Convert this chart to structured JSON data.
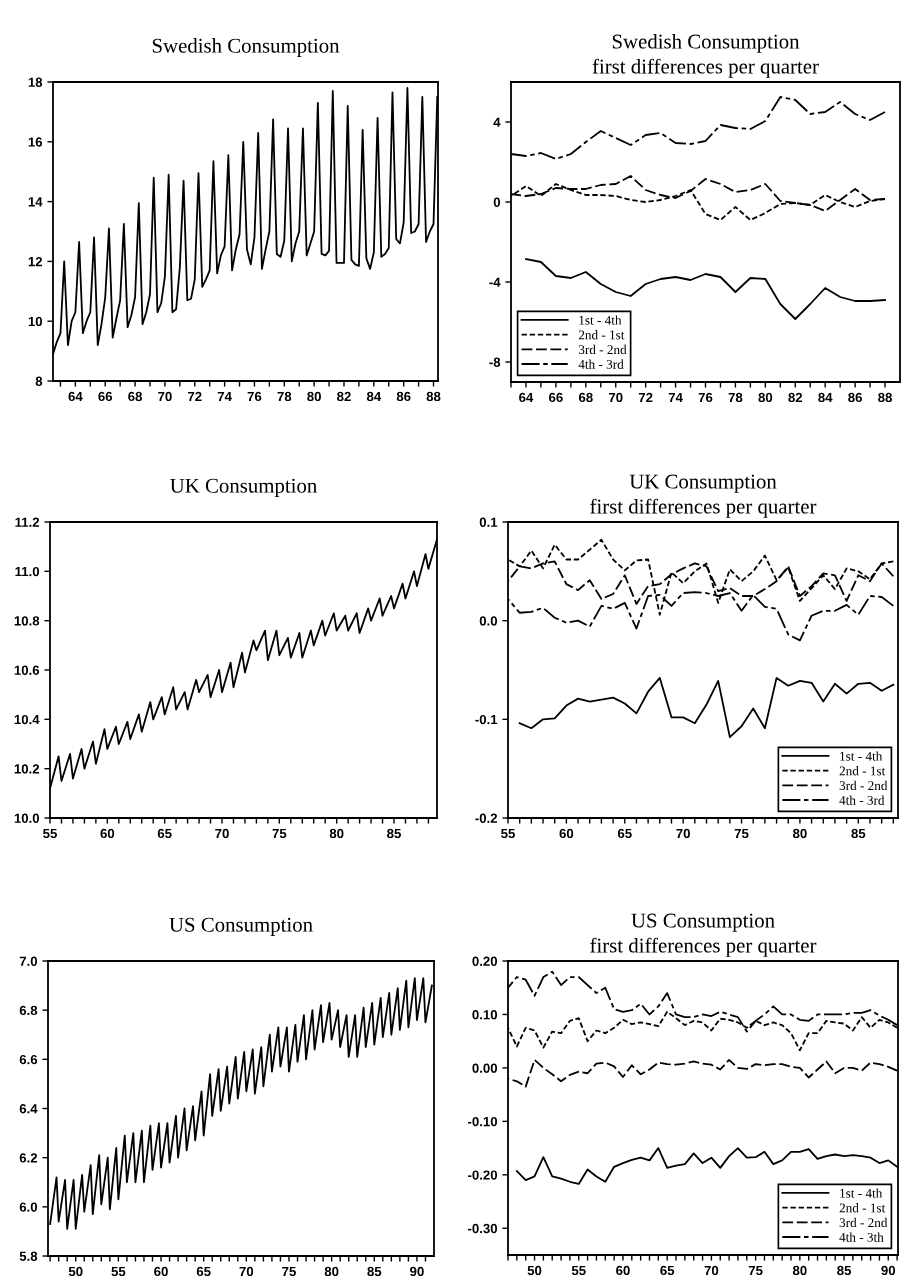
{
  "chart_data": [
    {
      "type": "line",
      "title": "Swedish Consumption",
      "color": "#000000",
      "line_style": "solid",
      "xlim": [
        62.5,
        88.3
      ],
      "ylim": [
        8,
        18
      ],
      "yticks": [
        8,
        10,
        12,
        14,
        16,
        18
      ],
      "xticks": [
        {
          "value": 63,
          "label": null
        },
        64,
        {
          "value": 65,
          "label": null
        },
        66,
        {
          "value": 67,
          "label": null
        },
        68,
        {
          "value": 69,
          "label": null
        },
        70,
        {
          "value": 71,
          "label": null
        },
        72,
        {
          "value": 73,
          "label": null
        },
        74,
        {
          "value": 75,
          "label": null
        },
        76,
        {
          "value": 77,
          "label": null
        },
        78,
        {
          "value": 79,
          "label": null
        },
        80,
        {
          "value": 81,
          "label": null
        },
        82,
        {
          "value": 83,
          "label": null
        },
        84,
        {
          "value": 85,
          "label": null
        },
        86,
        {
          "value": 87,
          "label": null
        },
        88
      ],
      "x": [
        62.5,
        62.75,
        63,
        63.25,
        63.5,
        63.75,
        64,
        64.25,
        64.5,
        64.75,
        65,
        65.25,
        65.5,
        65.75,
        66,
        66.25,
        66.5,
        66.75,
        67,
        67.25,
        67.5,
        67.75,
        68,
        68.25,
        68.5,
        68.75,
        69,
        69.25,
        69.5,
        69.75,
        70,
        70.25,
        70.5,
        70.75,
        71,
        71.25,
        71.5,
        71.75,
        72,
        72.25,
        72.5,
        72.75,
        73,
        73.25,
        73.5,
        73.75,
        74,
        74.25,
        74.5,
        74.75,
        75,
        75.25,
        75.5,
        75.75,
        76,
        76.25,
        76.5,
        76.75,
        77,
        77.25,
        77.5,
        77.75,
        78,
        78.25,
        78.5,
        78.75,
        79,
        79.25,
        79.5,
        79.75,
        80,
        80.25,
        80.5,
        80.75,
        81,
        81.25,
        81.5,
        81.75,
        82,
        82.25,
        82.5,
        82.75,
        83,
        83.25,
        83.5,
        83.75,
        84,
        84.25,
        84.5,
        84.75,
        85,
        85.25,
        85.5,
        85.75,
        86,
        86.25,
        86.5,
        86.75,
        87,
        87.25,
        87.5,
        87.75,
        88,
        88.25
      ],
      "values": [
        8.9,
        9.3,
        9.6,
        12.0,
        9.2,
        10.0,
        10.3,
        12.65,
        9.6,
        10.0,
        10.3,
        12.8,
        9.2,
        9.9,
        10.8,
        13.1,
        9.45,
        10.1,
        10.7,
        13.25,
        9.8,
        10.2,
        10.8,
        13.95,
        9.9,
        10.3,
        10.9,
        14.8,
        10.3,
        10.6,
        11.5,
        14.9,
        10.3,
        10.4,
        11.8,
        14.7,
        10.7,
        10.75,
        11.4,
        14.95,
        11.15,
        11.4,
        11.7,
        15.35,
        11.6,
        12.2,
        12.5,
        15.55,
        11.7,
        12.4,
        12.9,
        16.0,
        12.4,
        11.9,
        12.8,
        16.3,
        11.75,
        12.4,
        13.0,
        16.75,
        12.25,
        12.15,
        12.7,
        16.45,
        12.0,
        12.6,
        13.0,
        16.45,
        12.2,
        12.6,
        13.0,
        17.3,
        12.25,
        12.2,
        12.35,
        17.7,
        11.95,
        11.95,
        11.95,
        17.2,
        12.05,
        11.9,
        11.85,
        16.4,
        12.1,
        11.75,
        12.3,
        16.8,
        12.15,
        12.25,
        12.45,
        17.65,
        12.75,
        12.6,
        13.3,
        17.8,
        12.95,
        13.0,
        13.25,
        17.5,
        12.65,
        13.0,
        13.25,
        17.5
      ]
    },
    {
      "type": "line",
      "title": "Swedish Consumption",
      "subtitle": "first differences per quarter",
      "legend": "bottom left",
      "xlim": [
        63,
        89
      ],
      "ylim": [
        -9,
        6
      ],
      "yticks": [
        -8,
        -4,
        0,
        4
      ],
      "xticks": [
        {
          "value": 63,
          "label": null
        },
        64,
        {
          "value": 65,
          "label": null
        },
        66,
        {
          "value": 67,
          "label": null
        },
        68,
        {
          "value": 69,
          "label": null
        },
        70,
        {
          "value": 71,
          "label": null
        },
        72,
        {
          "value": 73,
          "label": null
        },
        74,
        {
          "value": 75,
          "label": null
        },
        76,
        {
          "value": 77,
          "label": null
        },
        78,
        {
          "value": 79,
          "label": null
        },
        80,
        {
          "value": 81,
          "label": null
        },
        82,
        {
          "value": 83,
          "label": null
        },
        84,
        {
          "value": 85,
          "label": null
        },
        86,
        {
          "value": 87,
          "label": null
        },
        88
      ],
      "x": [
        63,
        64,
        65,
        66,
        67,
        68,
        69,
        70,
        71,
        72,
        73,
        74,
        75,
        76,
        77,
        78,
        79,
        80,
        81,
        82,
        83,
        84,
        85,
        86,
        87,
        88
      ],
      "series": [
        {
          "name": "1st - 4th",
          "color": "#000000",
          "line_style": "solid",
          "values": [
            null,
            -2.85,
            -3.0,
            -3.7,
            -3.8,
            -3.5,
            -4.1,
            -4.5,
            -4.7,
            -4.1,
            -3.85,
            -3.75,
            -3.9,
            -3.6,
            -3.75,
            -4.5,
            -3.8,
            -3.85,
            -5.1,
            -5.85,
            -5.1,
            -4.3,
            -4.75,
            -4.95,
            -4.95,
            -4.9
          ]
        },
        {
          "name": "2nd - 1st",
          "color": "#000000",
          "line_style": "dotted",
          "values": [
            0.3,
            0.8,
            0.3,
            0.9,
            0.6,
            0.35,
            0.35,
            0.3,
            0.1,
            0.0,
            0.1,
            0.3,
            0.6,
            -0.6,
            -0.9,
            -0.25,
            -0.9,
            -0.55,
            -0.1,
            -0.05,
            -0.15,
            0.35,
            0.0,
            -0.25,
            0.05,
            0.15
          ]
        },
        {
          "name": "3rd - 2nd",
          "color": "#000000",
          "line_style": "dashed",
          "values": [
            0.4,
            0.3,
            0.4,
            0.7,
            0.65,
            0.65,
            0.85,
            0.9,
            1.3,
            0.6,
            0.35,
            0.2,
            0.55,
            1.15,
            0.9,
            0.5,
            0.6,
            0.9,
            0.05,
            -0.05,
            -0.15,
            -0.45,
            0.1,
            0.65,
            0.1,
            0.15
          ]
        },
        {
          "name": "4th - 3rd",
          "color": "#000000",
          "line_style": "dashdot",
          "values": [
            2.4,
            2.3,
            2.45,
            2.15,
            2.4,
            3.0,
            3.55,
            3.2,
            2.85,
            3.35,
            3.45,
            2.95,
            2.9,
            3.05,
            3.85,
            3.7,
            3.65,
            4.05,
            5.25,
            5.1,
            4.4,
            4.5,
            5.0,
            4.4,
            4.1,
            4.5
          ]
        }
      ]
    },
    {
      "type": "line",
      "title": "UK Consumption",
      "color": "#000000",
      "line_style": "solid",
      "xlim": [
        55,
        88.75
      ],
      "ylim": [
        10.0,
        11.2
      ],
      "yticks": [
        {
          "value": 10.0,
          "label": "10.0"
        },
        {
          "value": 10.2,
          "label": "10.2"
        },
        {
          "value": 10.4,
          "label": "10.4"
        },
        {
          "value": 10.6,
          "label": "10.6"
        },
        {
          "value": 10.8,
          "label": "10.8"
        },
        {
          "value": 11.0,
          "label": "11.0"
        },
        {
          "value": 11.2,
          "label": "11.2"
        }
      ],
      "xticks": [
        55,
        {
          "value": 56,
          "label": null
        },
        {
          "value": 57,
          "label": null
        },
        {
          "value": 58,
          "label": null
        },
        {
          "value": 59,
          "label": null
        },
        60,
        {
          "value": 61,
          "label": null
        },
        {
          "value": 62,
          "label": null
        },
        {
          "value": 63,
          "label": null
        },
        {
          "value": 64,
          "label": null
        },
        65,
        {
          "value": 66,
          "label": null
        },
        {
          "value": 67,
          "label": null
        },
        {
          "value": 68,
          "label": null
        },
        {
          "value": 69,
          "label": null
        },
        70,
        {
          "value": 71,
          "label": null
        },
        {
          "value": 72,
          "label": null
        },
        {
          "value": 73,
          "label": null
        },
        {
          "value": 74,
          "label": null
        },
        75,
        {
          "value": 76,
          "label": null
        },
        {
          "value": 77,
          "label": null
        },
        {
          "value": 78,
          "label": null
        },
        {
          "value": 79,
          "label": null
        },
        80,
        {
          "value": 81,
          "label": null
        },
        {
          "value": 82,
          "label": null
        },
        {
          "value": 83,
          "label": null
        },
        {
          "value": 84,
          "label": null
        },
        85,
        {
          "value": 86,
          "label": null
        },
        {
          "value": 87,
          "label": null
        },
        {
          "value": 88,
          "label": null
        }
      ],
      "x": [
        55,
        55.75,
        56,
        56.75,
        57,
        57.75,
        58,
        58.75,
        59,
        59.75,
        60,
        60.75,
        61,
        61.75,
        62,
        62.75,
        63,
        63.75,
        64,
        64.75,
        65,
        65.75,
        66,
        66.75,
        67,
        67.75,
        68,
        68.75,
        69,
        69.75,
        70,
        70.75,
        71,
        71.75,
        72,
        72.75,
        73,
        73.75,
        74,
        74.75,
        75,
        75.75,
        76,
        76.75,
        77,
        77.75,
        78,
        78.75,
        79,
        79.75,
        80,
        80.75,
        81,
        81.75,
        82,
        82.75,
        83,
        83.75,
        84,
        84.75,
        85,
        85.75,
        86,
        86.75,
        87,
        87.75,
        88,
        88.75
      ],
      "values": [
        10.12,
        10.25,
        10.15,
        10.26,
        10.16,
        10.28,
        10.2,
        10.31,
        10.22,
        10.36,
        10.28,
        10.37,
        10.3,
        10.39,
        10.32,
        10.42,
        10.35,
        10.47,
        10.4,
        10.49,
        10.42,
        10.53,
        10.44,
        10.51,
        10.44,
        10.56,
        10.51,
        10.58,
        10.49,
        10.6,
        10.51,
        10.63,
        10.53,
        10.67,
        10.59,
        10.72,
        10.68,
        10.76,
        10.64,
        10.76,
        10.66,
        10.73,
        10.65,
        10.75,
        10.65,
        10.76,
        10.7,
        10.8,
        10.74,
        10.83,
        10.76,
        10.82,
        10.76,
        10.83,
        10.75,
        10.85,
        10.8,
        10.89,
        10.82,
        10.9,
        10.85,
        10.95,
        10.89,
        11.0,
        10.94,
        11.07,
        11.01,
        11.13
      ]
    },
    {
      "type": "line",
      "title": "UK Consumption",
      "subtitle": "first differences per quarter",
      "legend": "bottom right",
      "xlim": [
        55,
        88.4
      ],
      "ylim": [
        -0.2,
        0.1
      ],
      "yticks": [
        {
          "value": -0.2,
          "label": "-0.2"
        },
        {
          "value": -0.1,
          "label": "-0.1"
        },
        {
          "value": 0,
          "label": "0.0"
        },
        {
          "value": 0.1,
          "label": "0.1"
        }
      ],
      "xticks": [
        55,
        {
          "value": 56,
          "label": null
        },
        {
          "value": 57,
          "label": null
        },
        {
          "value": 58,
          "label": null
        },
        {
          "value": 59,
          "label": null
        },
        60,
        {
          "value": 61,
          "label": null
        },
        {
          "value": 62,
          "label": null
        },
        {
          "value": 63,
          "label": null
        },
        {
          "value": 64,
          "label": null
        },
        65,
        {
          "value": 66,
          "label": null
        },
        {
          "value": 67,
          "label": null
        },
        {
          "value": 68,
          "label": null
        },
        {
          "value": 69,
          "label": null
        },
        70,
        {
          "value": 71,
          "label": null
        },
        {
          "value": 72,
          "label": null
        },
        {
          "value": 73,
          "label": null
        },
        {
          "value": 74,
          "label": null
        },
        75,
        {
          "value": 76,
          "label": null
        },
        {
          "value": 77,
          "label": null
        },
        {
          "value": 78,
          "label": null
        },
        {
          "value": 79,
          "label": null
        },
        80,
        {
          "value": 81,
          "label": null
        },
        {
          "value": 82,
          "label": null
        },
        {
          "value": 83,
          "label": null
        },
        {
          "value": 84,
          "label": null
        },
        85,
        {
          "value": 86,
          "label": null
        },
        {
          "value": 87,
          "label": null
        },
        {
          "value": 88,
          "label": null
        }
      ],
      "x": [
        55,
        56,
        57,
        58,
        59,
        60,
        61,
        62,
        63,
        64,
        65,
        66,
        67,
        68,
        69,
        70,
        71,
        72,
        73,
        74,
        75,
        76,
        77,
        78,
        79,
        80,
        81,
        82,
        83,
        84,
        85,
        86,
        87,
        88
      ],
      "series": [
        {
          "name": "1st - 4th",
          "color": "#000000",
          "line_style": "solid",
          "values": [
            null,
            -0.104,
            -0.109,
            -0.1,
            -0.099,
            -0.086,
            -0.079,
            -0.082,
            -0.08,
            -0.078,
            -0.084,
            -0.094,
            -0.072,
            -0.058,
            -0.098,
            -0.098,
            -0.104,
            -0.085,
            -0.061,
            -0.118,
            -0.107,
            -0.089,
            -0.109,
            -0.058,
            -0.066,
            -0.061,
            -0.063,
            -0.082,
            -0.064,
            -0.074,
            -0.064,
            -0.063,
            -0.071,
            -0.065
          ]
        },
        {
          "name": "2nd - 1st",
          "color": "#000000",
          "line_style": "dotted",
          "values": [
            0.062,
            0.055,
            0.071,
            0.053,
            0.077,
            0.062,
            0.062,
            0.072,
            0.082,
            0.062,
            0.051,
            0.061,
            0.062,
            0.006,
            0.049,
            0.038,
            0.05,
            0.058,
            0.018,
            0.052,
            0.04,
            0.05,
            0.066,
            0.041,
            0.054,
            0.02,
            0.033,
            0.046,
            0.032,
            0.053,
            0.05,
            0.042,
            0.058,
            0.06
          ]
        },
        {
          "name": "3rd - 2nd",
          "color": "#000000",
          "line_style": "dashed",
          "values": [
            0.04,
            0.055,
            0.053,
            0.058,
            0.06,
            0.037,
            0.031,
            0.041,
            0.022,
            0.027,
            0.046,
            0.017,
            0.035,
            0.037,
            0.047,
            0.053,
            0.058,
            0.055,
            0.03,
            0.033,
            0.025,
            0.025,
            0.032,
            0.04,
            0.055,
            0.025,
            0.035,
            0.048,
            0.046,
            0.02,
            0.046,
            0.04,
            0.058,
            0.045
          ]
        },
        {
          "name": "4th - 3rd",
          "color": "#000000",
          "line_style": "dashdot",
          "values": [
            0.022,
            0.008,
            0.009,
            0.013,
            0.003,
            -0.002,
            0.0,
            -0.006,
            0.015,
            0.012,
            0.018,
            -0.008,
            0.025,
            0.026,
            0.015,
            0.028,
            0.029,
            0.028,
            0.025,
            0.028,
            0.01,
            0.026,
            0.014,
            0.012,
            -0.014,
            -0.02,
            0.005,
            0.01,
            0.01,
            0.016,
            0.006,
            0.025,
            0.024,
            0.015
          ]
        }
      ]
    },
    {
      "type": "line",
      "title": "US Consumption",
      "color": "#000000",
      "line_style": "solid",
      "xlim": [
        46.75,
        92
      ],
      "ylim": [
        5.8,
        7.0
      ],
      "yticks": [
        {
          "value": 5.8,
          "label": "5.8"
        },
        {
          "value": 6.0,
          "label": "6.0"
        },
        {
          "value": 6.2,
          "label": "6.2"
        },
        {
          "value": 6.4,
          "label": "6.4"
        },
        {
          "value": 6.6,
          "label": "6.6"
        },
        {
          "value": 6.8,
          "label": "6.8"
        },
        {
          "value": 7.0,
          "label": "7.0"
        }
      ],
      "xticks": [
        {
          "value": 47,
          "label": null
        },
        {
          "value": 48,
          "label": null
        },
        {
          "value": 49,
          "label": null
        },
        50,
        {
          "value": 51,
          "label": null
        },
        {
          "value": 52,
          "label": null
        },
        {
          "value": 53,
          "label": null
        },
        {
          "value": 54,
          "label": null
        },
        55,
        {
          "value": 56,
          "label": null
        },
        {
          "value": 57,
          "label": null
        },
        {
          "value": 58,
          "label": null
        },
        {
          "value": 59,
          "label": null
        },
        60,
        {
          "value": 61,
          "label": null
        },
        {
          "value": 62,
          "label": null
        },
        {
          "value": 63,
          "label": null
        },
        {
          "value": 64,
          "label": null
        },
        65,
        {
          "value": 66,
          "label": null
        },
        {
          "value": 67,
          "label": null
        },
        {
          "value": 68,
          "label": null
        },
        {
          "value": 69,
          "label": null
        },
        70,
        {
          "value": 71,
          "label": null
        },
        {
          "value": 72,
          "label": null
        },
        {
          "value": 73,
          "label": null
        },
        {
          "value": 74,
          "label": null
        },
        75,
        {
          "value": 76,
          "label": null
        },
        {
          "value": 77,
          "label": null
        },
        {
          "value": 78,
          "label": null
        },
        {
          "value": 79,
          "label": null
        },
        80,
        {
          "value": 81,
          "label": null
        },
        {
          "value": 82,
          "label": null
        },
        {
          "value": 83,
          "label": null
        },
        {
          "value": 84,
          "label": null
        },
        85,
        {
          "value": 86,
          "label": null
        },
        {
          "value": 87,
          "label": null
        },
        {
          "value": 88,
          "label": null
        },
        {
          "value": 89,
          "label": null
        },
        90,
        {
          "value": 91,
          "label": null
        }
      ],
      "x": [
        47,
        47.75,
        48,
        48.75,
        49,
        49.75,
        50,
        50.75,
        51,
        51.75,
        52,
        52.75,
        53,
        53.75,
        54,
        54.75,
        55,
        55.75,
        56,
        56.75,
        57,
        57.75,
        58,
        58.75,
        59,
        59.75,
        60,
        60.75,
        61,
        61.75,
        62,
        62.75,
        63,
        63.75,
        64,
        64.75,
        65,
        65.75,
        66,
        66.75,
        67,
        67.75,
        68,
        68.75,
        69,
        69.75,
        70,
        70.75,
        71,
        71.75,
        72,
        72.75,
        73,
        73.75,
        74,
        74.75,
        75,
        75.75,
        76,
        76.75,
        77,
        77.75,
        78,
        78.75,
        79,
        79.75,
        80,
        80.75,
        81,
        81.75,
        82,
        82.75,
        83,
        83.75,
        84,
        84.75,
        85,
        85.75,
        86,
        86.75,
        87,
        87.75,
        88,
        88.75,
        89,
        89.75,
        90,
        90.75,
        91,
        91.75
      ],
      "values": [
        5.93,
        6.12,
        5.94,
        6.11,
        5.91,
        6.11,
        5.91,
        6.13,
        5.98,
        6.17,
        5.97,
        6.21,
        6.01,
        6.2,
        5.99,
        6.24,
        6.03,
        6.29,
        6.1,
        6.3,
        6.1,
        6.31,
        6.1,
        6.33,
        6.15,
        6.34,
        6.16,
        6.34,
        6.18,
        6.37,
        6.2,
        6.4,
        6.23,
        6.41,
        6.27,
        6.47,
        6.29,
        6.54,
        6.37,
        6.56,
        6.39,
        6.57,
        6.42,
        6.61,
        6.44,
        6.63,
        6.47,
        6.64,
        6.46,
        6.65,
        6.49,
        6.7,
        6.55,
        6.73,
        6.57,
        6.73,
        6.55,
        6.74,
        6.59,
        6.78,
        6.6,
        6.8,
        6.64,
        6.82,
        6.67,
        6.83,
        6.68,
        6.8,
        6.65,
        6.78,
        6.61,
        6.78,
        6.61,
        6.81,
        6.65,
        6.83,
        6.66,
        6.85,
        6.69,
        6.87,
        6.7,
        6.89,
        6.72,
        6.92,
        6.73,
        6.93,
        6.76,
        6.93,
        6.75,
        6.9
      ]
    },
    {
      "type": "line",
      "title": "US Consumption",
      "subtitle": "first differences per quarter",
      "legend": "bottom right",
      "xlim": [
        47,
        91.1
      ],
      "ylim": [
        -0.35,
        0.2
      ],
      "yticks": [
        {
          "value": -0.3,
          "label": "-0.30"
        },
        {
          "value": -0.2,
          "label": "-0.20"
        },
        {
          "value": -0.1,
          "label": "-0.10"
        },
        {
          "value": 0,
          "label": "0.00"
        },
        {
          "value": 0.1,
          "label": "0.10"
        },
        {
          "value": 0.2,
          "label": "0.20"
        }
      ],
      "xticks": [
        {
          "value": 47,
          "label": null
        },
        {
          "value": 48,
          "label": null
        },
        {
          "value": 49,
          "label": null
        },
        50,
        {
          "value": 51,
          "label": null
        },
        {
          "value": 52,
          "label": null
        },
        {
          "value": 53,
          "label": null
        },
        {
          "value": 54,
          "label": null
        },
        55,
        {
          "value": 56,
          "label": null
        },
        {
          "value": 57,
          "label": null
        },
        {
          "value": 58,
          "label": null
        },
        {
          "value": 59,
          "label": null
        },
        60,
        {
          "value": 61,
          "label": null
        },
        {
          "value": 62,
          "label": null
        },
        {
          "value": 63,
          "label": null
        },
        {
          "value": 64,
          "label": null
        },
        65,
        {
          "value": 66,
          "label": null
        },
        {
          "value": 67,
          "label": null
        },
        {
          "value": 68,
          "label": null
        },
        {
          "value": 69,
          "label": null
        },
        70,
        {
          "value": 71,
          "label": null
        },
        {
          "value": 72,
          "label": null
        },
        {
          "value": 73,
          "label": null
        },
        {
          "value": 74,
          "label": null
        },
        75,
        {
          "value": 76,
          "label": null
        },
        {
          "value": 77,
          "label": null
        },
        {
          "value": 78,
          "label": null
        },
        {
          "value": 79,
          "label": null
        },
        80,
        {
          "value": 81,
          "label": null
        },
        {
          "value": 82,
          "label": null
        },
        {
          "value": 83,
          "label": null
        },
        {
          "value": 84,
          "label": null
        },
        85,
        {
          "value": 86,
          "label": null
        },
        {
          "value": 87,
          "label": null
        },
        {
          "value": 88,
          "label": null
        },
        {
          "value": 89,
          "label": null
        },
        90,
        {
          "value": 91,
          "label": null
        }
      ],
      "x": [
        47,
        48,
        49,
        50,
        51,
        52,
        53,
        54,
        55,
        56,
        57,
        58,
        59,
        60,
        61,
        62,
        63,
        64,
        65,
        66,
        67,
        68,
        69,
        70,
        71,
        72,
        73,
        74,
        75,
        76,
        77,
        78,
        79,
        80,
        81,
        82,
        83,
        84,
        85,
        86,
        87,
        88,
        89,
        90,
        91
      ],
      "series": [
        {
          "name": "1st - 4th",
          "color": "#000000",
          "line_style": "solid",
          "values": [
            null,
            -0.193,
            -0.21,
            -0.203,
            -0.167,
            -0.203,
            -0.207,
            -0.213,
            -0.217,
            -0.19,
            -0.203,
            -0.213,
            -0.185,
            -0.178,
            -0.172,
            -0.168,
            -0.173,
            -0.15,
            -0.187,
            -0.183,
            -0.18,
            -0.16,
            -0.178,
            -0.168,
            -0.187,
            -0.165,
            -0.15,
            -0.168,
            -0.167,
            -0.157,
            -0.18,
            -0.173,
            -0.157,
            -0.157,
            -0.152,
            -0.17,
            -0.165,
            -0.162,
            -0.165,
            -0.163,
            -0.165,
            -0.168,
            -0.178,
            -0.173,
            -0.185
          ]
        },
        {
          "name": "2nd - 1st",
          "color": "#000000",
          "line_style": "dotted",
          "values": [
            0.075,
            0.04,
            0.075,
            0.07,
            0.038,
            0.068,
            0.065,
            0.088,
            0.093,
            0.05,
            0.07,
            0.065,
            0.075,
            0.09,
            0.082,
            0.085,
            0.082,
            0.078,
            0.105,
            0.093,
            0.08,
            0.088,
            0.085,
            0.07,
            0.092,
            0.09,
            0.085,
            0.075,
            0.088,
            0.08,
            0.085,
            0.08,
            0.065,
            0.033,
            0.065,
            0.065,
            0.088,
            0.085,
            0.083,
            0.07,
            0.095,
            0.075,
            0.09,
            0.085,
            0.075
          ]
        },
        {
          "name": "3rd - 2nd",
          "color": "#000000",
          "line_style": "dashed",
          "values": [
            -0.02,
            -0.025,
            -0.035,
            0.015,
            0.0,
            -0.012,
            -0.025,
            -0.013,
            -0.007,
            -0.01,
            0.008,
            0.01,
            0.003,
            -0.017,
            0.005,
            -0.012,
            -0.003,
            0.01,
            0.007,
            0.006,
            0.008,
            0.012,
            0.008,
            0.006,
            -0.003,
            0.015,
            0.0,
            -0.002,
            0.007,
            0.005,
            0.007,
            0.007,
            0.002,
            0.0,
            -0.018,
            -0.003,
            0.012,
            -0.01,
            0.0,
            0.0,
            -0.005,
            0.01,
            0.007,
            0.002,
            -0.005
          ]
        },
        {
          "name": "4th - 3th",
          "color": "#000000",
          "line_style": "dashdot",
          "values": [
            0.15,
            0.17,
            0.165,
            0.135,
            0.17,
            0.18,
            0.155,
            0.17,
            0.17,
            0.155,
            0.14,
            0.15,
            0.11,
            0.105,
            0.108,
            0.12,
            0.1,
            0.115,
            0.14,
            0.1,
            0.095,
            0.095,
            0.1,
            0.097,
            0.105,
            0.1,
            0.095,
            0.068,
            0.088,
            0.1,
            0.115,
            0.1,
            0.1,
            0.09,
            0.088,
            0.1,
            0.1,
            0.1,
            0.1,
            0.103,
            0.103,
            0.108,
            0.098,
            0.09,
            0.08
          ]
        }
      ]
    }
  ]
}
